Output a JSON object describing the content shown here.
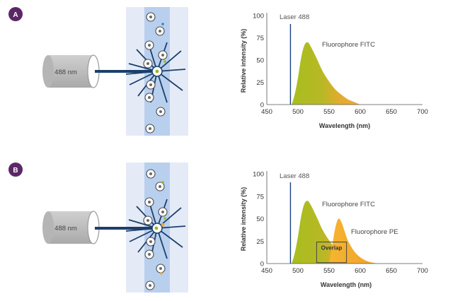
{
  "colors": {
    "badge": "#5b2766",
    "channel_outer": "#e4ebf7",
    "channel_inner": "#b9cfee",
    "cylinder": "#bcbcbc",
    "beam": "#1b3f6b",
    "laser_line": "#1a3f85",
    "fitc_green": "#9ab623",
    "fitc_orange": "#f0a92f",
    "pe_orange": "#f4ad32"
  },
  "panels": [
    {
      "badge": "A",
      "cylinder_label": "488 nm",
      "chart": {
        "laser_label": "Laser 488",
        "fitc_label": "Fluorophore FITC",
        "pe_label": "",
        "overlap_label": "",
        "xlabel": "Wavelength (nm)",
        "ylabel": "Relative intensity (%)"
      }
    },
    {
      "badge": "B",
      "cylinder_label": "488 nm",
      "chart": {
        "laser_label": "Laser 488",
        "fitc_label": "Fluorophore FITC",
        "pe_label": "Fluorophore PE",
        "overlap_label": "Overlap",
        "xlabel": "Wavelength (nm)",
        "ylabel": "Relative intensity (%)"
      }
    }
  ],
  "chart_data": [
    {
      "type": "area",
      "title": "",
      "xlabel": "Wavelength (nm)",
      "ylabel": "Relative intensity (%)",
      "xlim": [
        450,
        700
      ],
      "ylim": [
        0,
        100
      ],
      "x_ticks": [
        "450",
        "500",
        "550",
        "600",
        "650",
        "700"
      ],
      "y_ticks": [
        "0",
        "25",
        "50",
        "75",
        "100"
      ],
      "laser_nm": 488,
      "series": [
        {
          "name": "Fluorophore FITC",
          "x": [
            490,
            495,
            500,
            505,
            510,
            515,
            520,
            530,
            540,
            550,
            560,
            570,
            580,
            590,
            600
          ],
          "y": [
            0,
            12,
            30,
            52,
            66,
            70,
            66,
            52,
            37,
            26,
            17,
            11,
            6,
            3,
            0
          ]
        }
      ]
    },
    {
      "type": "area",
      "title": "",
      "xlabel": "Wavelength (nm)",
      "ylabel": "Relative intensity (%)",
      "xlim": [
        450,
        700
      ],
      "ylim": [
        0,
        100
      ],
      "x_ticks": [
        "450",
        "500",
        "550",
        "600",
        "650",
        "700"
      ],
      "y_ticks": [
        "0",
        "25",
        "50",
        "75",
        "100"
      ],
      "laser_nm": 488,
      "overlap_range": [
        530,
        578
      ],
      "series": [
        {
          "name": "Fluorophore FITC",
          "x": [
            490,
            495,
            500,
            505,
            510,
            515,
            520,
            530,
            540,
            550,
            560,
            570,
            580,
            590,
            600
          ],
          "y": [
            0,
            12,
            30,
            52,
            66,
            70,
            66,
            52,
            37,
            26,
            17,
            11,
            6,
            3,
            0
          ]
        },
        {
          "name": "Fluorophore PE",
          "x": [
            550,
            555,
            560,
            565,
            570,
            575,
            580,
            590,
            600,
            610,
            620,
            630
          ],
          "y": [
            0,
            20,
            40,
            50,
            46,
            36,
            26,
            14,
            7,
            3,
            1,
            0
          ]
        }
      ]
    }
  ]
}
